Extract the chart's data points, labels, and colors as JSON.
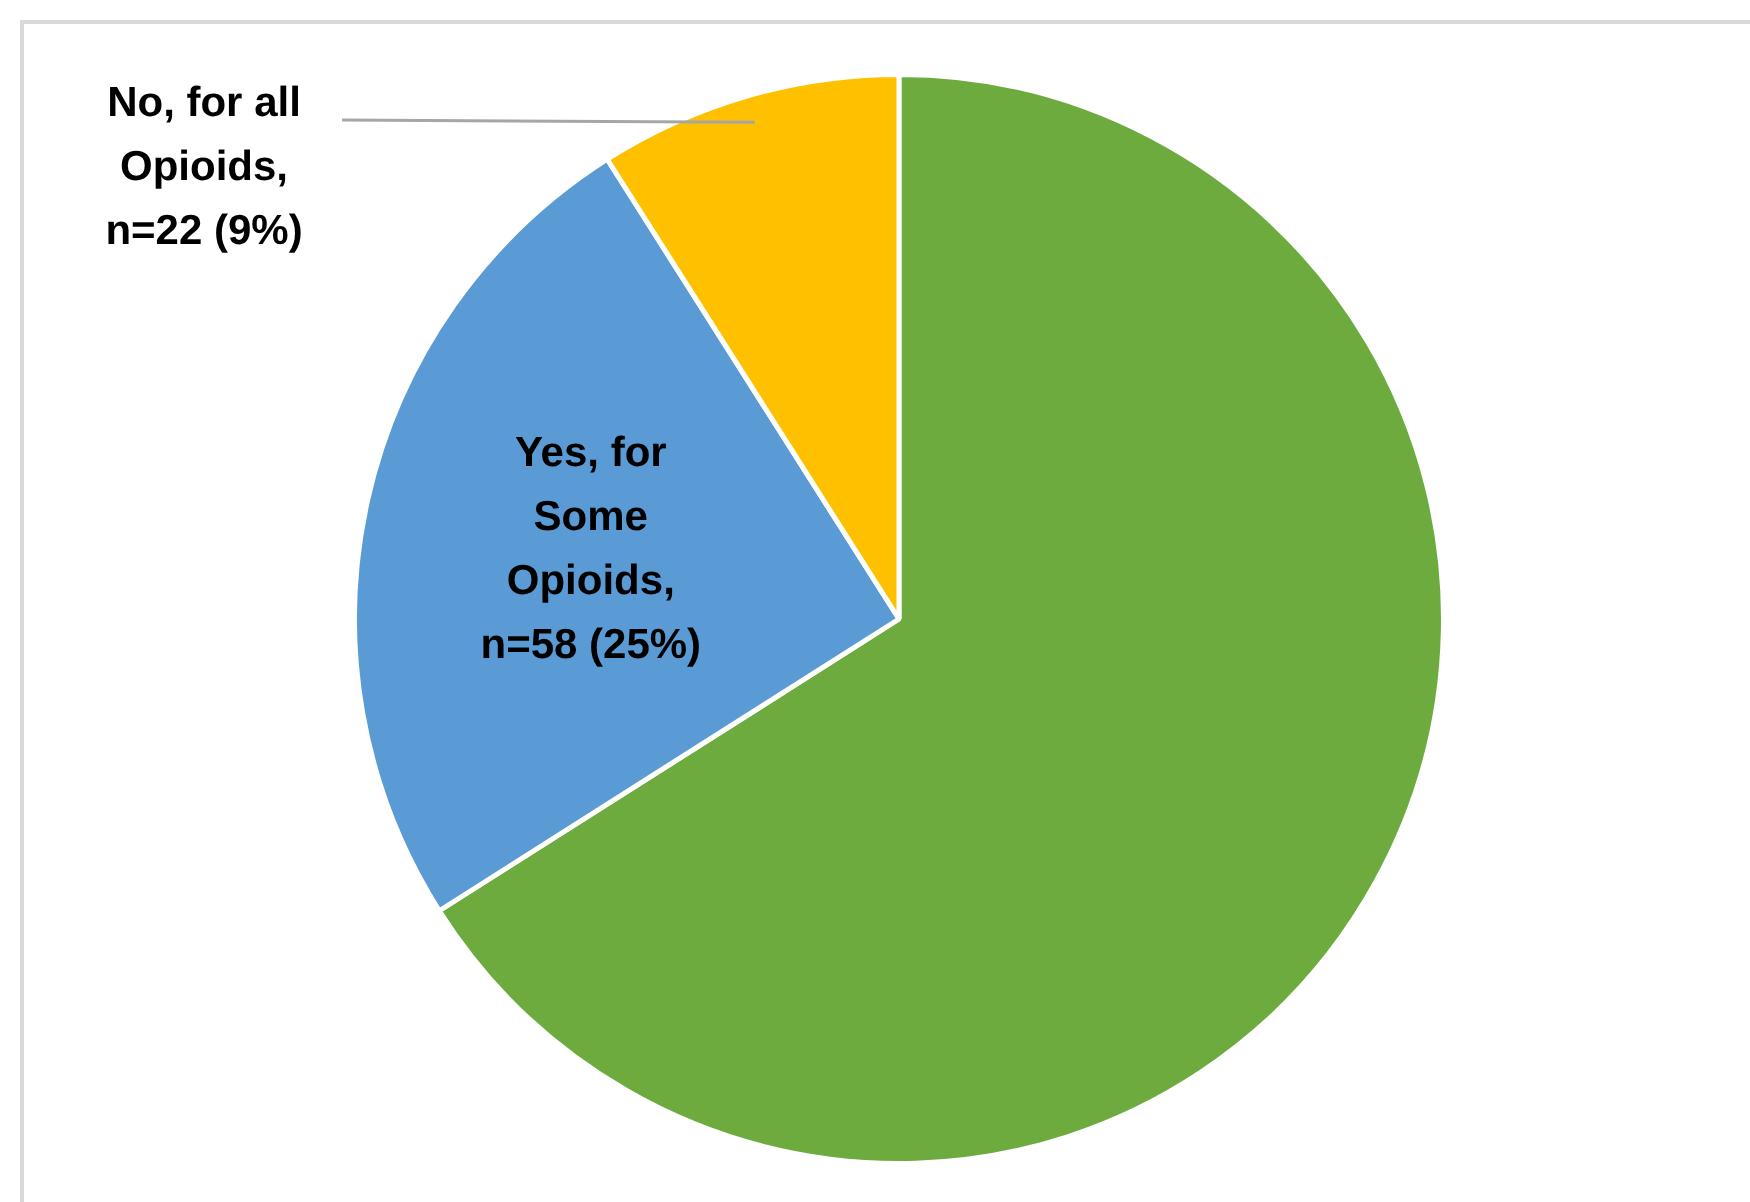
{
  "chart_data": {
    "type": "pie",
    "categories": [
      null,
      "Yes, for Some Opioids, n=58 (25%)",
      "No, for all Opioids, n=22 (9%)"
    ],
    "values": [
      66,
      25,
      9
    ],
    "colors": [
      "#6eab3f",
      "#5b9bd5",
      "#ffc000"
    ],
    "legend": false
  }
}
